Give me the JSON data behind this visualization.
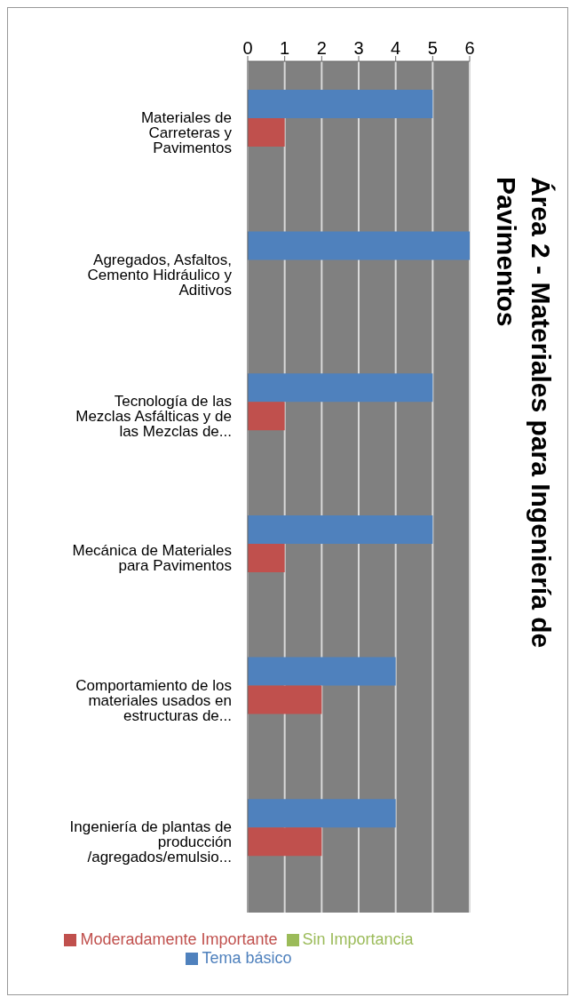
{
  "chart_data": {
    "type": "bar",
    "orientation": "horizontal",
    "title": "Área 2 - Materiales para Ingeniería de Pavimentos",
    "categories": [
      "Materiales de Carreteras y Pavimentos",
      "Agregados, Asfaltos, Cemento Hidráulico y Aditivos",
      "Tecnología de las Mezclas Asfálticas y de las Mezclas de...",
      "Mecánica de Materiales para Pavimentos",
      "Comportamiento de los materiales usados en estructuras de...",
      "Ingeniería de plantas de producción /agregados/emulsio..."
    ],
    "series": [
      {
        "name": "Tema básico",
        "color": "#4f81bd",
        "values": [
          5,
          6,
          5,
          5,
          4,
          4
        ]
      },
      {
        "name": "Moderadamente Importante",
        "color": "#c0504d",
        "values": [
          1,
          0,
          1,
          1,
          2,
          2
        ]
      },
      {
        "name": "Sin Importancia",
        "color": "#9bbb59",
        "values": [
          0,
          0,
          0,
          0,
          0,
          0
        ]
      }
    ],
    "xlim": [
      0,
      6
    ],
    "xticks": [
      0,
      1,
      2,
      3,
      4,
      5,
      6
    ],
    "grid": "x",
    "legend": "bottom"
  }
}
